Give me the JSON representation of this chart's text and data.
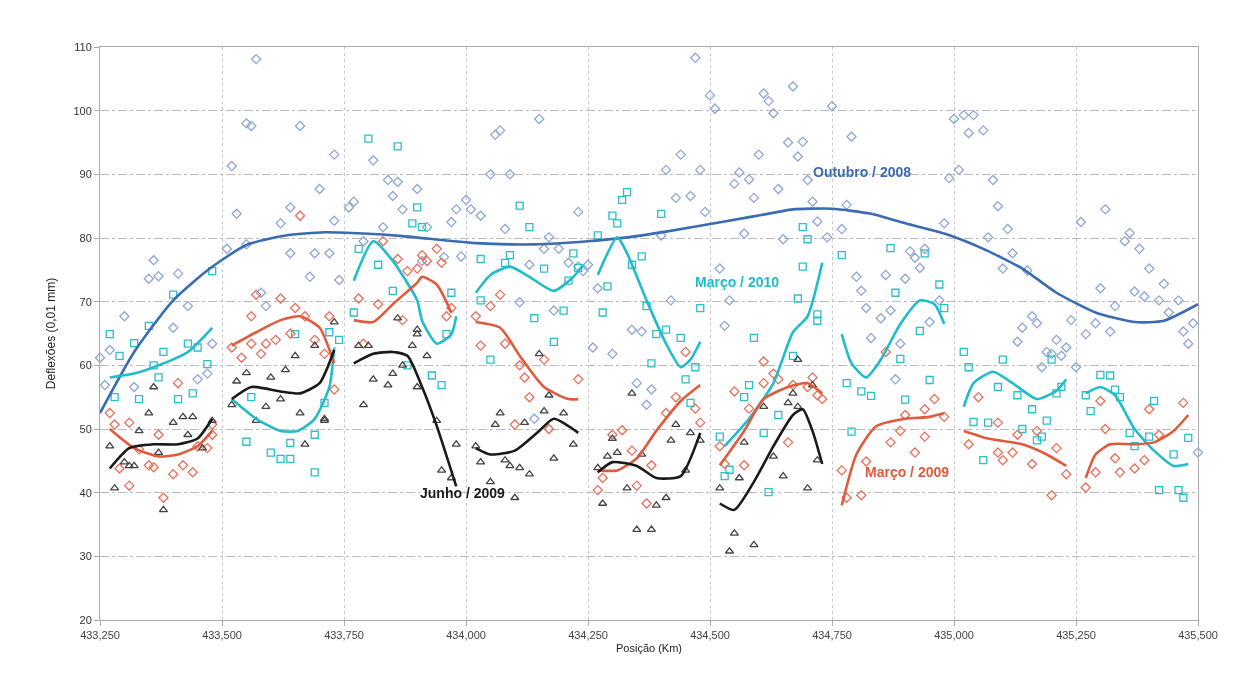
{
  "chart_data": {
    "type": "scatter",
    "xlabel": "Posição (Km)",
    "ylabel": "Deflexões (0,01 mm)",
    "xlim": [
      433250,
      435500
    ],
    "ylim": [
      20,
      110
    ],
    "xticks": [
      {
        "value": 433250,
        "label": "433,250"
      },
      {
        "value": 433500,
        "label": "433,500"
      },
      {
        "value": 433750,
        "label": "433,750"
      },
      {
        "value": 434000,
        "label": "434,000"
      },
      {
        "value": 434250,
        "label": "434,250"
      },
      {
        "value": 434500,
        "label": "434,500"
      },
      {
        "value": 434750,
        "label": "434,750"
      },
      {
        "value": 435000,
        "label": "435,000"
      },
      {
        "value": 435250,
        "label": "435,250"
      },
      {
        "value": 435500,
        "label": "435,500"
      }
    ],
    "yticks": [
      20,
      30,
      40,
      50,
      60,
      70,
      80,
      90,
      100,
      110
    ],
    "grid": true,
    "annotations": [
      "Outubro / 2008",
      "Março / 2010",
      "Março / 2009",
      "Junho / 2009"
    ],
    "series": [
      {
        "marker": "diamond",
        "color": "#8fa6d6",
        "x": [
          433250,
          433260,
          433270,
          433300,
          433320,
          433350,
          433360,
          433370,
          433400,
          433410,
          433430,
          433450,
          433470,
          433480,
          433510,
          433520,
          433530,
          433550,
          433550,
          433560,
          433570,
          433580,
          433590,
          433620,
          433640,
          433640,
          433660,
          433680,
          433690,
          433700,
          433720,
          433730,
          433730,
          433740,
          433760,
          433770,
          433790,
          433810,
          433830,
          433840,
          433850,
          433860,
          433870,
          433900,
          433910,
          433920,
          433955,
          433970,
          433980,
          433990,
          434000,
          434010,
          434030,
          434060,
          434070,
          434050,
          434090,
          434080,
          434110,
          434130,
          434150,
          434160,
          434170,
          434190,
          434180,
          434210,
          434230,
          434230,
          434240,
          434250,
          434140,
          434260,
          434270,
          434300,
          434350,
          434340,
          434360,
          434370,
          434380,
          434400,
          434410,
          434420,
          434430,
          434440,
          434460,
          434470,
          434480,
          434490,
          434500,
          434510,
          434520,
          434530,
          434540,
          434550,
          434560,
          434570,
          434580,
          434590,
          434600,
          434610,
          434620,
          434630,
          434640,
          434650,
          434660,
          434670,
          434680,
          434690,
          434700,
          434710,
          434720,
          434740,
          434750,
          434770,
          434780,
          434790,
          434800,
          434810,
          434820,
          434830,
          434860,
          434850,
          434870,
          434880,
          434890,
          434900,
          434910,
          434920,
          434930,
          434940,
          434950,
          434970,
          434980,
          434990,
          435000,
          435010,
          435020,
          435030,
          435040,
          435060,
          435070,
          435080,
          435090,
          435100,
          435110,
          435120,
          435130,
          435140,
          435150,
          435160,
          435170,
          435180,
          435190,
          435200,
          435210,
          435220,
          435230,
          435240,
          435250,
          435260,
          435270,
          435290,
          435300,
          435310,
          435320,
          435330,
          435350,
          435360,
          435370,
          435380,
          435390,
          435400,
          435420,
          435430,
          435440,
          435460,
          435470,
          435480,
          435490,
          435500
        ],
        "values": [
          61.2,
          56.9,
          62.4,
          67.7,
          56.6,
          73.6,
          76.5,
          74.0,
          65.9,
          74.4,
          69.3,
          57.8,
          58.7,
          63.4,
          78.3,
          91.3,
          83.8,
          79.0,
          98.0,
          97.6,
          108.1,
          71.4,
          69.3,
          82.3,
          84.8,
          77.6,
          97.6,
          73.9,
          77.6,
          87.7,
          77.6,
          82.7,
          93.1,
          73.4,
          84.8,
          85.7,
          79.5,
          92.2,
          81.7,
          89.1,
          86.6,
          88.8,
          84.5,
          87.7,
          76.4,
          81.7,
          77.0,
          82.5,
          84.5,
          77.1,
          86.0,
          84.5,
          83.5,
          96.2,
          96.9,
          90.0,
          90.0,
          81.4,
          69.9,
          75.8,
          98.7,
          78.3,
          80.1,
          78.3,
          68.6,
          76.1,
          84.1,
          75.5,
          74.8,
          75.8,
          51.6,
          62.8,
          72.1,
          61.8,
          57.2,
          65.6,
          65.3,
          53.8,
          56.2,
          80.4,
          90.7,
          70.2,
          86.3,
          93.1,
          86.6,
          108.3,
          90.7,
          84.1,
          102.4,
          100.3,
          75.2,
          66.2,
          70.2,
          88.5,
          90.3,
          80.7,
          89.2,
          86.3,
          93.1,
          102.7,
          101.5,
          99.6,
          87.7,
          79.8,
          95.0,
          103.8,
          92.8,
          95.1,
          89.1,
          85.7,
          82.6,
          80.1,
          100.7,
          81.4,
          85.2,
          95.9,
          73.9,
          71.7,
          69.0,
          64.3,
          74.2,
          67.4,
          68.6,
          57.8,
          63.4,
          73.6,
          77.9,
          76.9,
          75.3,
          78.3,
          66.8,
          70.2,
          82.3,
          89.4,
          98.7,
          90.7,
          99.3,
          96.5,
          99.3,
          96.9,
          80.1,
          89.1,
          85.0,
          75.2,
          81.4,
          77.6,
          63.7,
          65.9,
          74.9,
          67.7,
          66.6,
          59.7,
          62.1,
          61.8,
          64.0,
          61.5,
          62.8,
          67.1,
          59.7,
          82.5,
          64.9,
          66.6,
          72.1,
          84.5,
          65.3,
          69.3,
          79.5,
          80.8,
          71.6,
          78.3,
          70.8,
          75.2,
          70.2,
          72.8,
          68.3,
          70.2,
          65.3,
          63.4,
          66.6,
          46.3
        ]
      },
      {
        "marker": "square",
        "color": "#2bbfcc",
        "x": [
          433270,
          433280,
          433290,
          433320,
          433330,
          433350,
          433360,
          433370,
          433380,
          433400,
          433410,
          433430,
          433440,
          433450,
          433470,
          433480,
          433550,
          433560,
          433600,
          433620,
          433640,
          433640,
          433650,
          433690,
          433690,
          433710,
          433720,
          433740,
          433770,
          433780,
          433800,
          433820,
          433850,
          433860,
          433880,
          433900,
          433910,
          433890,
          433930,
          433950,
          433960,
          433970,
          434030,
          434030,
          434050,
          434080,
          434090,
          434110,
          434130,
          434140,
          434160,
          434180,
          434200,
          434210,
          434220,
          434230,
          434270,
          434280,
          434290,
          434300,
          434310,
          434320,
          434330,
          434340,
          434360,
          434370,
          434380,
          434390,
          434400,
          434410,
          434440,
          434450,
          434460,
          434470,
          434480,
          434520,
          434530,
          434540,
          434570,
          434580,
          434590,
          434610,
          434620,
          434640,
          434670,
          434680,
          434690,
          434690,
          434700,
          434720,
          434720,
          434770,
          434780,
          434790,
          434810,
          434830,
          434870,
          434880,
          434900,
          434890,
          434930,
          434940,
          434950,
          434970,
          434980,
          435020,
          435030,
          435040,
          435070,
          435060,
          435090,
          435100,
          435130,
          435140,
          435160,
          435170,
          435180,
          435190,
          435200,
          435210,
          435220,
          435270,
          435280,
          435300,
          435320,
          435330,
          435340,
          435360,
          435370,
          435400,
          435410,
          435420,
          435450,
          435460,
          435470,
          435480
        ],
        "values": [
          64.9,
          55.0,
          61.5,
          63.5,
          54.7,
          66.2,
          60.0,
          58.1,
          62.1,
          71.1,
          54.7,
          63.4,
          55.6,
          62.8,
          60.2,
          74.8,
          48.0,
          55.0,
          46.3,
          45.3,
          45.3,
          47.8,
          64.9,
          49.1,
          43.2,
          54.1,
          65.2,
          64.0,
          68.3,
          78.3,
          95.6,
          75.8,
          71.7,
          94.4,
          60.0,
          84.8,
          81.7,
          82.3,
          58.4,
          56.9,
          64.9,
          71.4,
          76.7,
          70.2,
          60.9,
          76.1,
          77.3,
          85.1,
          81.7,
          67.4,
          75.2,
          63.7,
          68.6,
          73.3,
          77.6,
          75.3,
          80.4,
          68.3,
          72.4,
          83.5,
          82.3,
          86.0,
          87.2,
          75.8,
          77.1,
          69.3,
          60.3,
          64.9,
          83.8,
          65.6,
          64.3,
          57.8,
          54.1,
          59.7,
          69.0,
          48.8,
          42.6,
          43.6,
          55.0,
          56.9,
          64.3,
          49.4,
          40.1,
          52.2,
          61.5,
          70.5,
          75.5,
          81.7,
          79.8,
          68.0,
          67.0,
          77.3,
          57.2,
          49.6,
          55.9,
          55.2,
          78.4,
          71.4,
          54.6,
          61.0,
          65.4,
          77.6,
          57.7,
          72.7,
          69.0,
          62.1,
          59.7,
          51.1,
          51.0,
          45.1,
          56.6,
          60.9,
          55.3,
          50.0,
          53.1,
          48.2,
          48.8,
          51.3,
          60.9,
          55.6,
          56.6,
          55.3,
          52.8,
          58.5,
          58.4,
          56.2,
          55.0,
          49.4,
          47.3,
          48.8,
          54.4,
          40.4,
          46.0,
          40.4,
          39.2,
          48.6
        ]
      },
      {
        "marker": "diamond",
        "color": "#e8705a",
        "x": [
          433270,
          433280,
          433290,
          433310,
          433310,
          433330,
          433350,
          433360,
          433370,
          433380,
          433400,
          433410,
          433420,
          433440,
          433450,
          433470,
          433480,
          433480,
          433520,
          433540,
          433560,
          433560,
          433570,
          433580,
          433590,
          433610,
          433620,
          433640,
          433650,
          433660,
          433670,
          433690,
          433710,
          433720,
          433730,
          433780,
          433790,
          433820,
          433830,
          433860,
          433870,
          433900,
          433880,
          433910,
          433920,
          433940,
          433950,
          433960,
          433970,
          434020,
          434030,
          434050,
          434070,
          434080,
          434110,
          434120,
          434130,
          434160,
          434170,
          434230,
          434100,
          434270,
          434280,
          434300,
          434320,
          434340,
          434350,
          434370,
          434380,
          434410,
          434430,
          434450,
          434470,
          434480,
          434520,
          434530,
          434550,
          434570,
          434580,
          434610,
          434610,
          434630,
          434640,
          434660,
          434670,
          434700,
          434710,
          434720,
          434730,
          434770,
          434780,
          434810,
          434820,
          434860,
          434870,
          434890,
          434900,
          434920,
          434940,
          434940,
          434960,
          434980,
          435030,
          435050,
          435090,
          435090,
          435100,
          435120,
          435130,
          435160,
          435170,
          435200,
          435210,
          435230,
          435270,
          435290,
          435300,
          435310,
          435330,
          435340,
          435370,
          435390,
          435400,
          435420,
          435470
        ],
        "values": [
          52.5,
          50.7,
          43.8,
          51.0,
          41.1,
          46.8,
          44.3,
          44.0,
          49.1,
          39.2,
          42.9,
          57.2,
          44.3,
          43.2,
          47.3,
          47.0,
          50.7,
          49.1,
          62.8,
          61.2,
          63.4,
          67.7,
          71.1,
          61.8,
          63.4,
          64.0,
          70.5,
          65.0,
          69.0,
          83.5,
          67.7,
          64.0,
          61.8,
          67.7,
          56.2,
          70.5,
          63.4,
          69.6,
          79.5,
          76.7,
          67.1,
          75.2,
          74.8,
          77.3,
          76.4,
          78.3,
          76.1,
          67.7,
          69.0,
          67.7,
          63.1,
          69.3,
          71.1,
          63.4,
          60.0,
          58.1,
          55.0,
          60.9,
          50.0,
          57.8,
          50.7,
          40.4,
          42.3,
          49.1,
          49.8,
          46.6,
          41.1,
          38.3,
          44.3,
          52.5,
          55.0,
          62.1,
          53.2,
          51.0,
          47.3,
          44.5,
          55.9,
          44.3,
          53.2,
          57.2,
          60.6,
          58.7,
          57.8,
          47.9,
          56.9,
          56.6,
          58.1,
          55.3,
          54.7,
          43.5,
          39.2,
          39.6,
          44.9,
          62.1,
          47.9,
          49.7,
          52.2,
          46.3,
          48.8,
          53.1,
          54.7,
          51.9,
          47.6,
          55.0,
          51.0,
          46.3,
          45.1,
          46.3,
          49.1,
          44.5,
          49.7,
          39.6,
          47.0,
          42.9,
          40.8,
          43.2,
          54.4,
          50.0,
          45.4,
          43.2,
          43.8,
          45.1,
          53.1,
          49.1,
          54.1
        ]
      },
      {
        "marker": "triangle",
        "color": "#444444",
        "x": [
          433270,
          433280,
          433300,
          433310,
          433320,
          433330,
          433350,
          433360,
          433370,
          433380,
          433400,
          433420,
          433440,
          433430,
          433460,
          433480,
          433520,
          433530,
          433550,
          433570,
          433590,
          433600,
          433620,
          433630,
          433650,
          433660,
          433670,
          433690,
          433710,
          433710,
          433730,
          433780,
          433790,
          433800,
          433810,
          433840,
          433850,
          433860,
          433870,
          433890,
          433900,
          433900,
          433920,
          433900,
          433940,
          433950,
          433970,
          433980,
          434020,
          434030,
          434050,
          434060,
          434070,
          434080,
          434090,
          434100,
          434110,
          434120,
          434130,
          434150,
          434160,
          434170,
          434180,
          434200,
          434220,
          434270,
          434280,
          434290,
          434300,
          434310,
          434330,
          434340,
          434350,
          434360,
          434380,
          434390,
          434410,
          434420,
          434430,
          434450,
          434460,
          434480,
          434520,
          434540,
          434550,
          434560,
          434570,
          434590,
          434610,
          434630,
          434650,
          434660,
          434670,
          434680,
          434680,
          434710,
          434720,
          434700
        ],
        "values": [
          47.3,
          40.7,
          44.8,
          44.2,
          44.2,
          49.7,
          52.5,
          56.6,
          46.3,
          37.3,
          51.0,
          51.9,
          51.9,
          49.1,
          47.0,
          51.3,
          53.8,
          57.5,
          58.8,
          51.3,
          53.5,
          58.1,
          54.7,
          59.3,
          61.5,
          52.5,
          47.6,
          63.1,
          51.6,
          51.3,
          66.8,
          63.1,
          53.8,
          63.1,
          57.8,
          56.9,
          58.7,
          67.4,
          60.0,
          63.1,
          64.9,
          65.6,
          61.5,
          56.6,
          51.3,
          43.5,
          42.3,
          47.6,
          47.3,
          44.8,
          41.7,
          50.7,
          52.5,
          45.1,
          44.2,
          39.2,
          43.9,
          51.0,
          42.9,
          61.8,
          52.8,
          55.3,
          45.4,
          52.5,
          47.6,
          43.9,
          38.3,
          45.7,
          48.5,
          46.3,
          40.7,
          55.6,
          34.2,
          46.0,
          34.2,
          38.0,
          39.2,
          48.2,
          50.7,
          43.5,
          49.4,
          48.2,
          40.7,
          30.8,
          33.6,
          42.3,
          47.9,
          31.8,
          53.5,
          45.7,
          42.6,
          54.1,
          55.6,
          53.5,
          60.9,
          56.9,
          45.1,
          40.7
        ]
      },
      {
        "type": "line",
        "color": "#3a6bb3",
        "x": [
          433250,
          433320,
          433400,
          433475,
          433550,
          433630,
          433710,
          433790,
          433870,
          434020,
          434140,
          434250,
          434330,
          434410,
          434530,
          434640,
          434670,
          434750,
          434830,
          434900,
          434980,
          435060,
          435140,
          435210,
          435290,
          435370,
          435430,
          435500
        ],
        "values": [
          52.5,
          62.1,
          70.2,
          75.2,
          78.9,
          80.4,
          80.9,
          80.7,
          80.3,
          79.2,
          79.0,
          79.5,
          80.1,
          81.0,
          82.6,
          84.1,
          84.5,
          84.6,
          83.8,
          82.3,
          80.7,
          78.3,
          75.2,
          71.4,
          68.3,
          66.8,
          67.0,
          69.6
        ]
      },
      {
        "type": "line",
        "color": "#1fbccb",
        "x": [
          433270,
          433320,
          433380,
          433430,
          433480,
          null,
          433520,
          433570,
          433620,
          433655,
          433690,
          433720,
          433730,
          null,
          433770,
          433810,
          433850,
          433900,
          433910,
          433940,
          433970,
          433980,
          null,
          434020,
          434050,
          434090,
          434130,
          434180,
          434220,
          434240,
          null,
          434270,
          434310,
          434330,
          434370,
          434410,
          434440,
          434460,
          434480,
          null,
          434530,
          434580,
          434630,
          434670,
          434700,
          434730,
          null,
          434770,
          434790,
          434820,
          434850,
          434890,
          434930,
          434960,
          434980,
          null,
          435020,
          435040,
          435080,
          435120,
          435170,
          435210,
          435230,
          null,
          435270,
          435300,
          435330,
          435370,
          435410,
          435450,
          435480
        ],
        "values": [
          58.1,
          58.7,
          60.3,
          62.1,
          65.9,
          null,
          54.7,
          51.6,
          49.7,
          49.7,
          51.6,
          56.6,
          62.8,
          null,
          73.3,
          79.5,
          76.4,
          70.2,
          67.0,
          63.4,
          64.9,
          67.7,
          null,
          71.4,
          74.2,
          75.5,
          73.9,
          71.7,
          73.9,
          75.8,
          null,
          74.2,
          80.1,
          77.6,
          70.2,
          63.4,
          59.7,
          60.9,
          63.7,
          null,
          47.3,
          51.6,
          57.2,
          65.2,
          67.7,
          76.1,
          null,
          64.9,
          60.3,
          58.1,
          60.9,
          66.5,
          70.2,
          69.6,
          66.5,
          null,
          53.5,
          57.2,
          59.0,
          57.2,
          54.7,
          56.0,
          57.8,
          null,
          55.6,
          56.6,
          55.3,
          50.0,
          46.6,
          44.2,
          44.5
        ]
      },
      {
        "type": "line",
        "color": "#e05a3e",
        "x": [
          433270,
          433320,
          433370,
          433410,
          433450,
          433480,
          null,
          433520,
          433570,
          433620,
          433660,
          433700,
          433730,
          null,
          433770,
          433810,
          433850,
          433900,
          433910,
          433940,
          433970,
          null,
          434020,
          434070,
          434110,
          434160,
          434210,
          434230,
          null,
          434270,
          434310,
          434350,
          434390,
          434440,
          434480,
          null,
          434520,
          434570,
          434610,
          434660,
          434700,
          434730,
          null,
          434770,
          434800,
          434840,
          434900,
          434950,
          434980,
          null,
          435020,
          435070,
          435140,
          435190,
          435230,
          null,
          435270,
          435290,
          435320,
          435370,
          435410,
          435450,
          435480
        ],
        "values": [
          50.0,
          47.0,
          45.7,
          46.0,
          47.3,
          49.7,
          null,
          63.1,
          65.2,
          67.1,
          67.7,
          65.9,
          60.3,
          null,
          67.1,
          66.8,
          69.6,
          73.0,
          73.9,
          72.7,
          68.3,
          null,
          66.8,
          65.9,
          61.5,
          56.6,
          54.7,
          54.7,
          null,
          43.5,
          43.5,
          45.4,
          49.7,
          54.4,
          56.9,
          null,
          44.3,
          49.7,
          54.7,
          56.6,
          57.2,
          55.6,
          null,
          38.0,
          46.0,
          50.4,
          51.6,
          51.9,
          52.5,
          null,
          49.7,
          48.5,
          47.6,
          46.0,
          44.2,
          null,
          42.3,
          46.0,
          47.6,
          47.6,
          47.9,
          49.7,
          52.2
        ]
      },
      {
        "type": "line",
        "color": "#1a1a1a",
        "x": [
          433270,
          433310,
          433360,
          433410,
          433450,
          433480,
          null,
          433520,
          433560,
          433620,
          433660,
          433700,
          433730,
          null,
          433770,
          433810,
          433850,
          433880,
          433910,
          433940,
          433980,
          null,
          434020,
          434050,
          434100,
          434150,
          434180,
          434230,
          null,
          434270,
          434300,
          434350,
          434390,
          434440,
          434480,
          null,
          434520,
          434550,
          434590,
          434630,
          434670,
          434690,
          434710,
          434730
        ],
        "values": [
          43.8,
          47.0,
          47.6,
          47.6,
          48.5,
          51.6,
          null,
          54.7,
          56.6,
          55.9,
          55.6,
          57.2,
          62.4,
          null,
          60.3,
          61.8,
          62.1,
          61.5,
          56.6,
          50.5,
          41.0,
          null,
          47.0,
          46.0,
          46.6,
          49.7,
          51.6,
          49.4,
          null,
          43.2,
          44.8,
          44.2,
          42.3,
          42.6,
          49.4,
          null,
          38.3,
          37.3,
          41.7,
          47.3,
          52.2,
          53.1,
          49.7,
          44.5
        ]
      }
    ]
  }
}
